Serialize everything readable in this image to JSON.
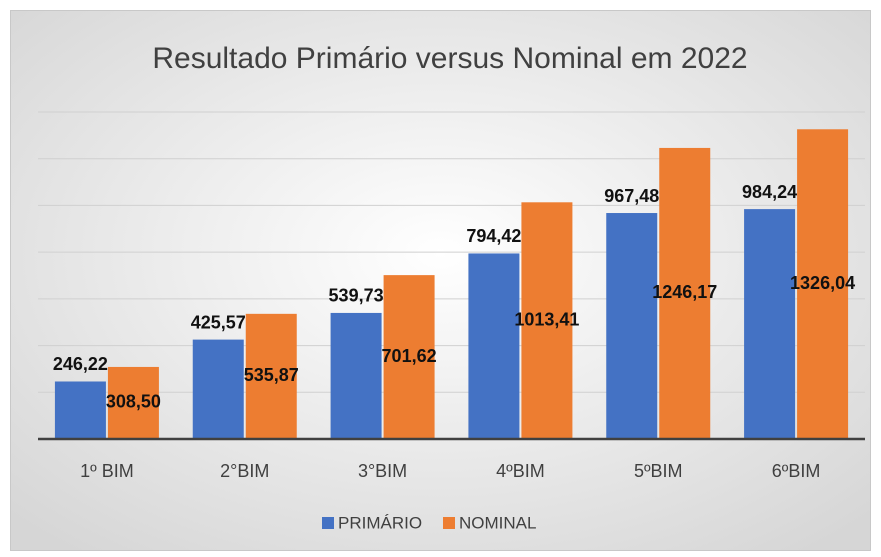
{
  "chart_data": {
    "type": "bar",
    "title": "Resultado Primário versus Nominal em 2022",
    "categories": [
      "1º BIM",
      "2°BIM",
      "3°BIM",
      "4ºBIM",
      "5ºBIM",
      "6ºBIM"
    ],
    "series": [
      {
        "name": "PRIMÁRIO",
        "color": "#4472c4",
        "values": [
          246.22,
          425.57,
          539.73,
          794.42,
          967.48,
          984.24
        ],
        "value_labels": [
          "246,22",
          "425,57",
          "539,73",
          "794,42",
          "967,48",
          "984,24"
        ]
      },
      {
        "name": "NOMINAL",
        "color": "#ed7d31",
        "values": [
          308.5,
          535.87,
          701.62,
          1013.41,
          1246.17,
          1326.04
        ],
        "value_labels": [
          "308,50",
          "535,87",
          "701,62",
          "1013,41",
          "1246,17",
          "1326,04"
        ]
      }
    ],
    "ylim": [
      0,
      1400
    ],
    "yticks": [
      0,
      200,
      400,
      600,
      800,
      1000,
      1200,
      1400
    ],
    "grid": true,
    "legend": "bottom"
  }
}
